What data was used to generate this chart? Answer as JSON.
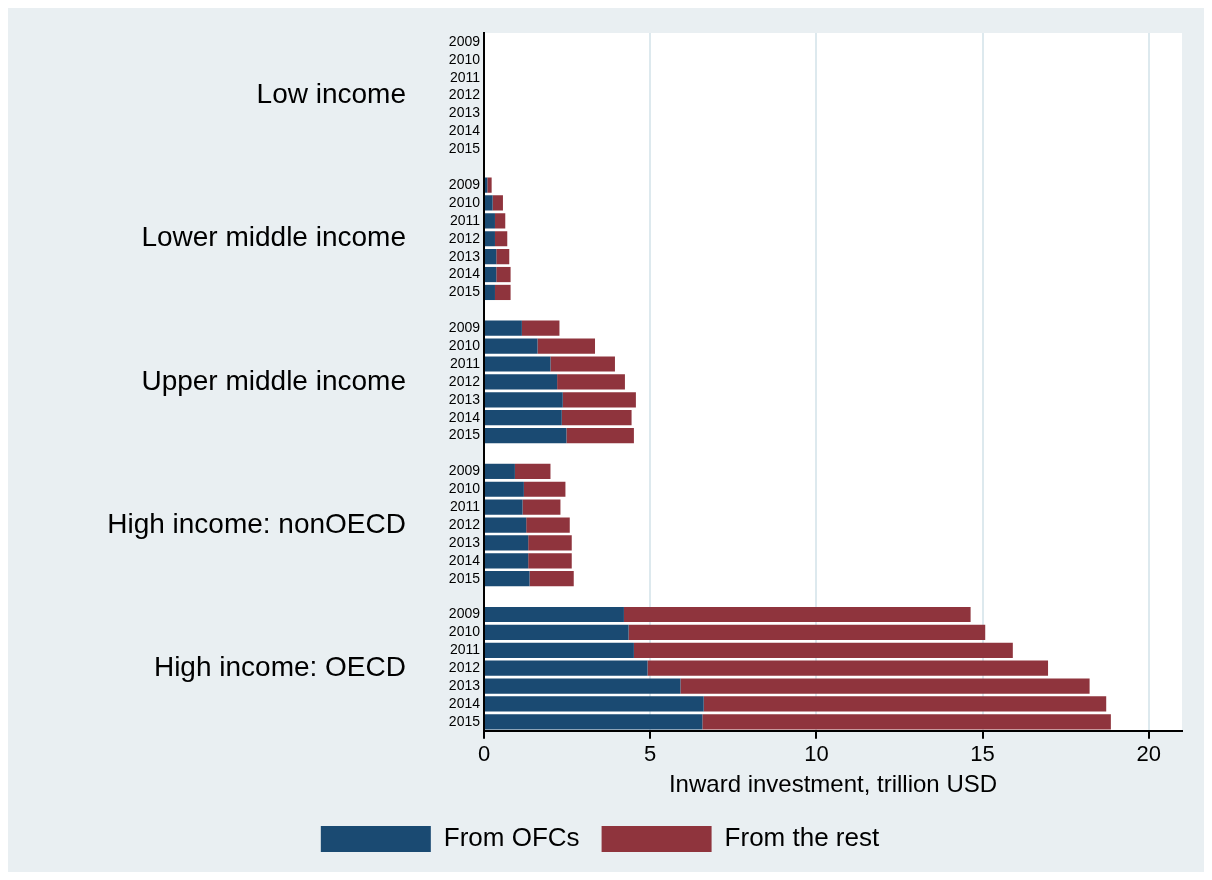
{
  "chart_data": {
    "type": "bar",
    "orientation": "horizontal",
    "stacked": true,
    "xlabel": "Inward investment, trillion USD",
    "categories": [
      "2009",
      "2010",
      "2011",
      "2012",
      "2013",
      "2014",
      "2015",
      null,
      "2009",
      "2010",
      "2011",
      "2012",
      "2013",
      "2014",
      "2015",
      null,
      "2009",
      "2010",
      "2011",
      "2012",
      "2013",
      "2014",
      "2015",
      null,
      "2009",
      "2010",
      "2011",
      "2012",
      "2013",
      "2014",
      "2015",
      null,
      "2009",
      "2010",
      "2011",
      "2012",
      "2013",
      "2014",
      "2015"
    ],
    "annotations": [
      "Low income",
      "Lower middle income",
      "Upper middle income",
      "High income: nonOECD",
      "High income: OECD"
    ],
    "series": [
      {
        "name": "From OFCs",
        "color": "#1a4a72",
        "values": [
          0,
          0,
          0,
          0,
          0,
          0,
          0,
          null,
          0.1,
          0.26,
          0.33,
          0.33,
          0.37,
          0.37,
          0.33,
          null,
          1.14,
          1.61,
          2.0,
          2.2,
          2.37,
          2.34,
          2.48,
          null,
          0.93,
          1.2,
          1.16,
          1.27,
          1.33,
          1.33,
          1.37,
          null,
          4.21,
          4.35,
          4.51,
          4.92,
          5.91,
          6.61,
          6.57
        ]
      },
      {
        "name": "From the rest",
        "color": "#8f343d",
        "values": [
          0,
          0,
          0,
          0,
          0,
          0,
          0,
          null,
          0.13,
          0.31,
          0.31,
          0.37,
          0.39,
          0.43,
          0.47,
          null,
          1.13,
          1.73,
          1.94,
          2.04,
          2.2,
          2.1,
          2.03,
          null,
          1.07,
          1.25,
          1.14,
          1.31,
          1.31,
          1.31,
          1.33,
          null,
          10.43,
          10.73,
          11.4,
          12.05,
          12.31,
          12.11,
          12.29
        ]
      }
    ],
    "xlim": [
      0,
      21
    ],
    "xticks": [
      0,
      5,
      10,
      15,
      20
    ],
    "grid": "x",
    "legend": "bottom"
  }
}
